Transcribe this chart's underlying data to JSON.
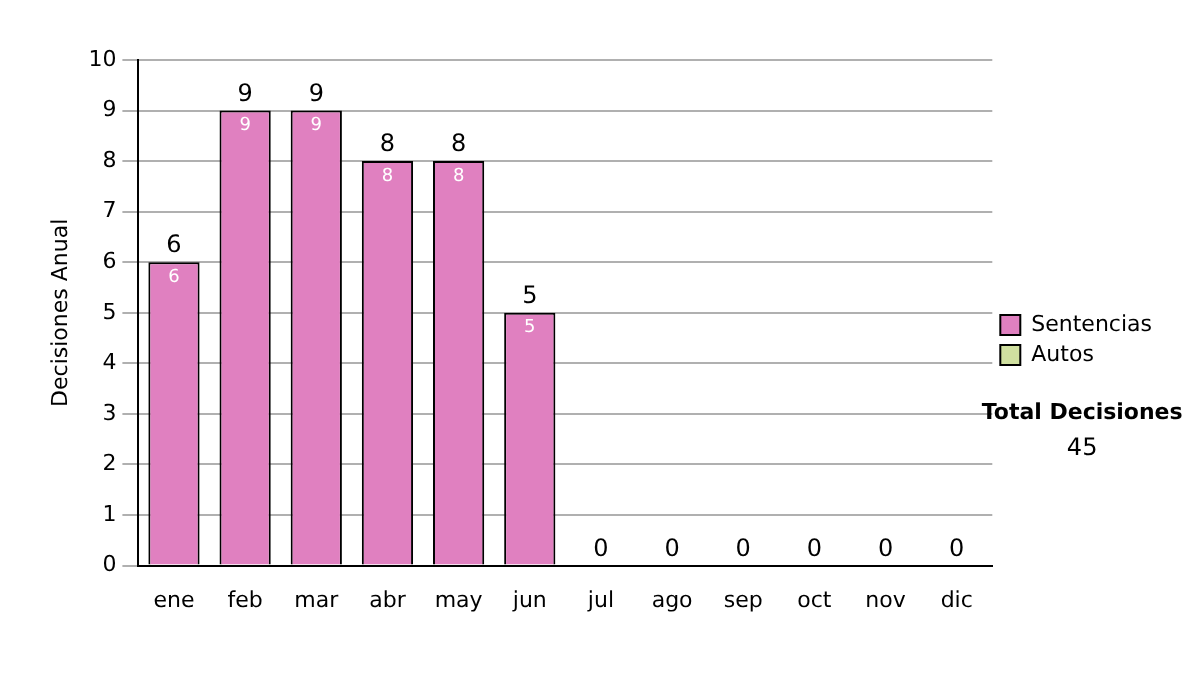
{
  "chart_data": {
    "type": "bar",
    "ylabel": "Decisiones Anual",
    "categories": [
      "ene",
      "feb",
      "mar",
      "abr",
      "may",
      "jun",
      "jul",
      "ago",
      "sep",
      "oct",
      "nov",
      "dic"
    ],
    "series": [
      {
        "name": "Sentencias",
        "color": "#e080c0",
        "values": [
          6,
          9,
          9,
          8,
          8,
          5,
          0,
          0,
          0,
          0,
          0,
          0
        ],
        "value_labels": [
          "6",
          "9",
          "9",
          "8",
          "8",
          "5",
          null,
          null,
          null,
          null,
          null,
          null
        ]
      },
      {
        "name": "Autos",
        "color": "#d0e0a0",
        "values": [
          0,
          0,
          0,
          0,
          0,
          0,
          0,
          0,
          0,
          0,
          0,
          0
        ]
      }
    ],
    "stacked": true,
    "totals": [
      "6",
      "9",
      "9",
      "8",
      "8",
      "5",
      "0",
      "0",
      "0",
      "0",
      "0",
      "0"
    ],
    "ylim": [
      0,
      10
    ],
    "yticks": [
      0,
      1,
      2,
      3,
      4,
      5,
      6,
      7,
      8,
      9,
      10
    ],
    "grid": "y",
    "legend": "right",
    "annotations": [
      "Total Decisiones",
      "45"
    ]
  }
}
